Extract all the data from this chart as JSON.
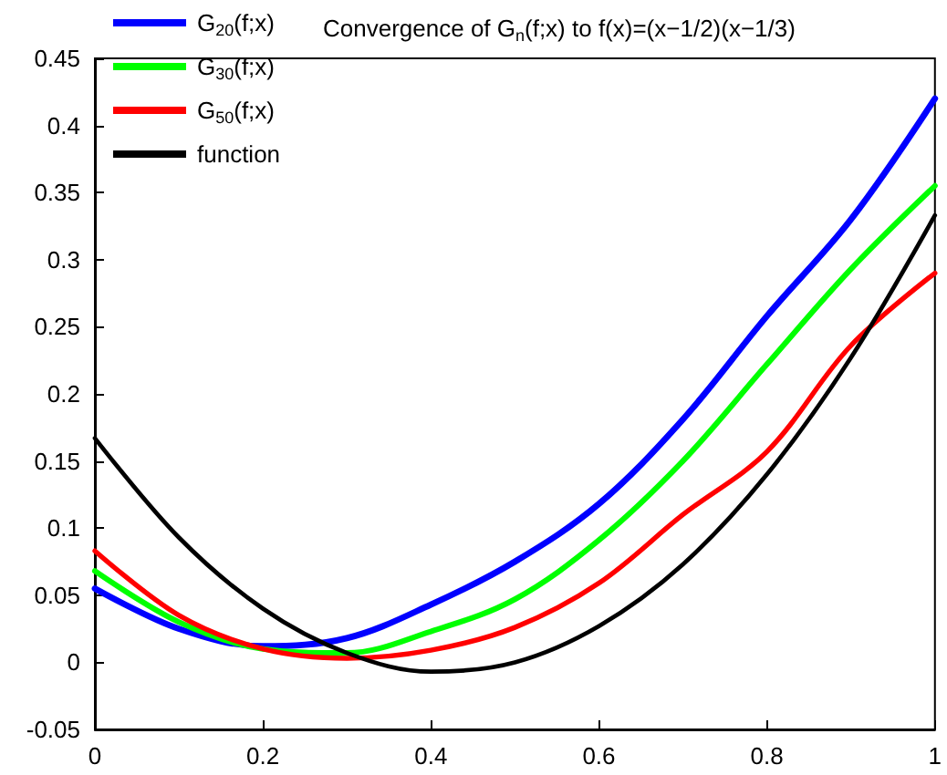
{
  "chart_data": {
    "type": "line",
    "title": "Convergence of G$_{n}$(f;x) to f(x)=(x−1/2)(x−1/3)",
    "x": [
      0,
      0.1,
      0.2,
      0.3,
      0.4,
      0.5,
      0.6,
      0.7,
      0.8,
      0.9,
      1
    ],
    "series": [
      {
        "name": "G$_{20}$(f;x)",
        "color": "#0000ff",
        "values": [
          0.055,
          0.025,
          0.012,
          0.018,
          0.043,
          0.075,
          0.118,
          0.181,
          0.258,
          0.33,
          0.42
        ]
      },
      {
        "name": "G$_{30}$(f;x)",
        "color": "#00ff00",
        "values": [
          0.068,
          0.03,
          0.01,
          0.007,
          0.023,
          0.047,
          0.091,
          0.15,
          0.222,
          0.293,
          0.355
        ]
      },
      {
        "name": "G$_{50}$(f;x)",
        "color": "#ff0000",
        "values": [
          0.083,
          0.035,
          0.01,
          0.003,
          0.009,
          0.026,
          0.059,
          0.11,
          0.157,
          0.236,
          0.29
        ]
      },
      {
        "name": "function",
        "color": "#000000",
        "values": [
          0.167,
          0.093,
          0.04,
          0.007,
          -0.007,
          0,
          0.027,
          0.073,
          0.14,
          0.227,
          0.333
        ]
      }
    ],
    "xlim": [
      0,
      1
    ],
    "xticks": [
      0,
      0.2,
      0.4,
      0.6,
      0.8,
      1
    ],
    "ylim": [
      -0.05,
      0.45
    ],
    "yticks": [
      -0.05,
      0,
      0.05,
      0.1,
      0.15,
      0.2,
      0.25,
      0.3,
      0.35,
      0.4,
      0.45
    ],
    "grid": false,
    "legend": "top left",
    "marker": "none",
    "line_style": "solid"
  }
}
